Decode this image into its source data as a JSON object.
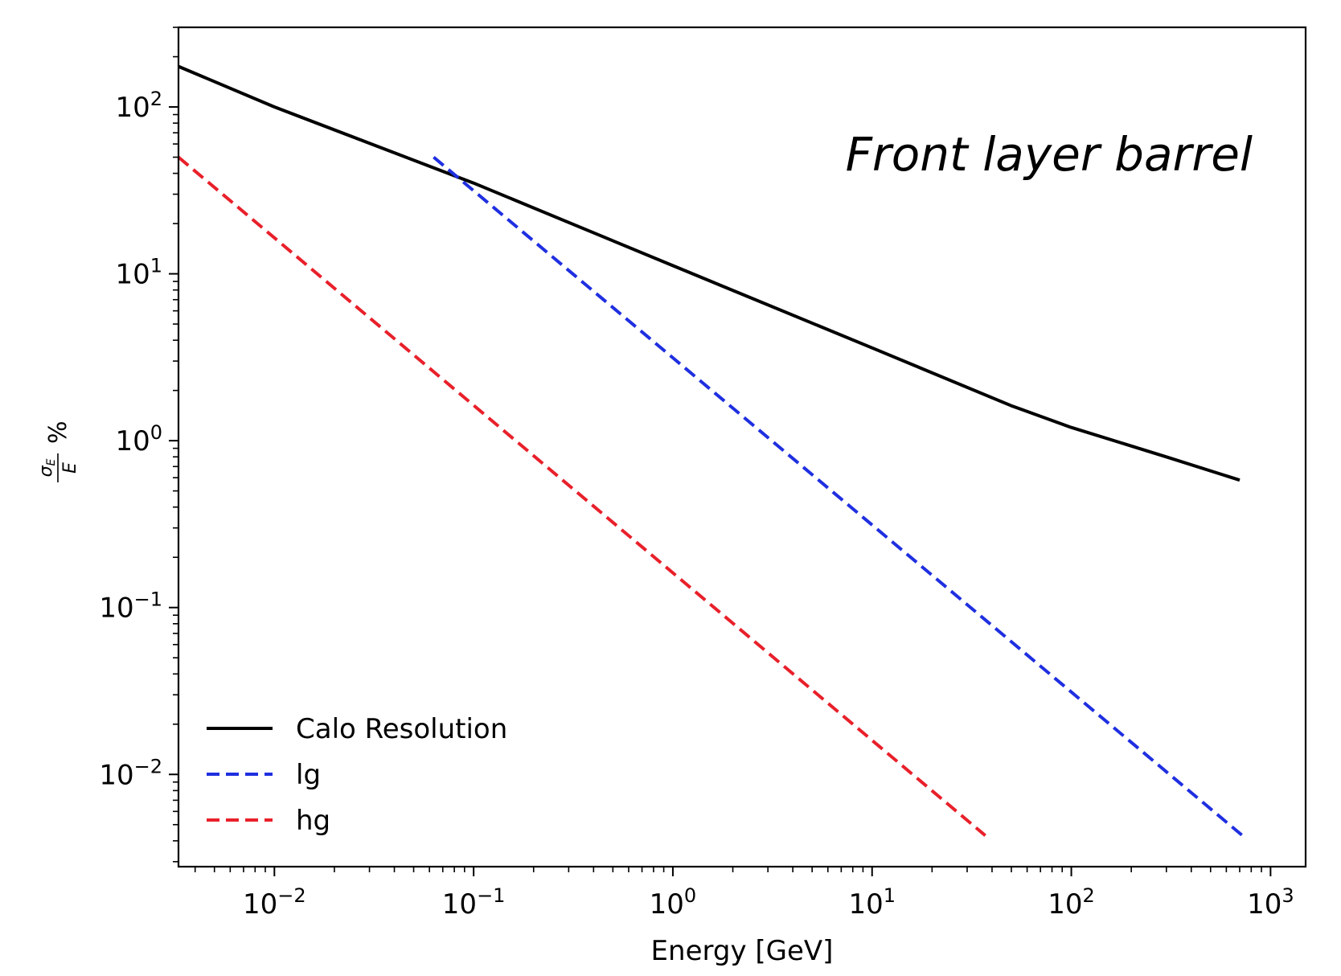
{
  "chart_data": {
    "type": "line",
    "title": "",
    "xlabel": "Energy [GeV]",
    "ylabel_fraction_numerator": "σ_E",
    "ylabel_fraction_denominator": "E",
    "ylabel_unit": "%",
    "x_scale": "log",
    "y_scale": "log",
    "xlim": [
      0.0033,
      1500
    ],
    "ylim": [
      0.0028,
      300
    ],
    "grid": false,
    "legend_placement": "lower-left",
    "x_ticks": [
      {
        "value": 0.01,
        "base": "10",
        "exp": "−2"
      },
      {
        "value": 0.1,
        "base": "10",
        "exp": "−1"
      },
      {
        "value": 1,
        "base": "10",
        "exp": "0"
      },
      {
        "value": 10,
        "base": "10",
        "exp": "1"
      },
      {
        "value": 100,
        "base": "10",
        "exp": "2"
      },
      {
        "value": 1000,
        "base": "10",
        "exp": "3"
      }
    ],
    "y_ticks": [
      {
        "value": 0.01,
        "base": "10",
        "exp": "−2"
      },
      {
        "value": 0.1,
        "base": "10",
        "exp": "−1"
      },
      {
        "value": 1,
        "base": "10",
        "exp": "0"
      },
      {
        "value": 10,
        "base": "10",
        "exp": "1"
      },
      {
        "value": 100,
        "base": "10",
        "exp": "2"
      }
    ],
    "annotation": "Front layer barrel",
    "series": [
      {
        "name": "Calo Resolution",
        "color": "#000000",
        "dash": "solid",
        "points": [
          [
            0.0033,
            175
          ],
          [
            0.01,
            100
          ],
          [
            0.1,
            35
          ],
          [
            1,
            11.2
          ],
          [
            10,
            3.6
          ],
          [
            50,
            1.62
          ],
          [
            100,
            1.2
          ],
          [
            300,
            0.8
          ],
          [
            700,
            0.58
          ]
        ]
      },
      {
        "name": "lg",
        "color": "#1f2fe0",
        "dash": "dashed",
        "points": [
          [
            0.063,
            50
          ],
          [
            740,
            0.0042
          ]
        ]
      },
      {
        "name": "hg",
        "color": "#e8202a",
        "dash": "dashed",
        "points": [
          [
            0.0033,
            50
          ],
          [
            37,
            0.0043
          ]
        ]
      }
    ]
  }
}
